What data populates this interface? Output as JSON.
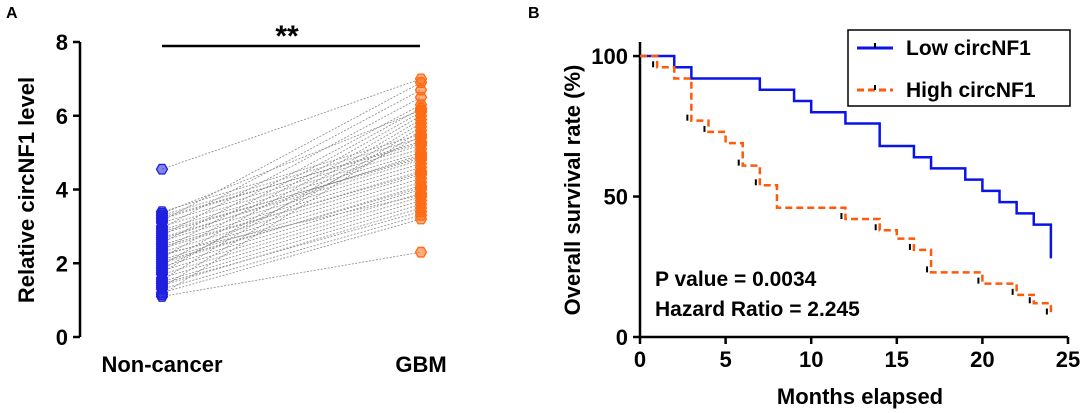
{
  "panels": {
    "a_label": "A",
    "b_label": "B"
  },
  "colors": {
    "noncancer": "#1f1fe0",
    "gbm": "#ff6a13",
    "low": "#0a14e8",
    "high": "#ff5a0a",
    "pair_line": "#8a8a8a",
    "axis": "#000000"
  },
  "chart_data": [
    {
      "type": "scatter",
      "subtype": "paired-dot",
      "ylabel": "Relative circNF1 level",
      "categories": [
        "Non-cancer",
        "GBM"
      ],
      "ylim": [
        0,
        8
      ],
      "yticks": [
        0,
        2,
        4,
        6,
        8
      ],
      "significance": "**",
      "pairs": [
        [
          1.1,
          2.3
        ],
        [
          1.2,
          3.2
        ],
        [
          1.3,
          3.3
        ],
        [
          1.4,
          3.5
        ],
        [
          1.5,
          3.6
        ],
        [
          1.6,
          3.7
        ],
        [
          1.7,
          3.8
        ],
        [
          1.8,
          3.9
        ],
        [
          1.9,
          4.0
        ],
        [
          2.0,
          4.1
        ],
        [
          2.1,
          4.2
        ],
        [
          2.2,
          4.3
        ],
        [
          2.3,
          4.4
        ],
        [
          2.4,
          4.5
        ],
        [
          2.5,
          4.6
        ],
        [
          2.6,
          4.7
        ],
        [
          2.7,
          4.8
        ],
        [
          2.8,
          4.9
        ],
        [
          2.9,
          5.0
        ],
        [
          3.0,
          5.1
        ],
        [
          3.1,
          5.2
        ],
        [
          3.2,
          5.3
        ],
        [
          3.3,
          5.4
        ],
        [
          3.4,
          5.5
        ],
        [
          1.15,
          5.6
        ],
        [
          1.35,
          5.7
        ],
        [
          1.55,
          5.8
        ],
        [
          1.75,
          5.9
        ],
        [
          1.95,
          6.0
        ],
        [
          2.15,
          6.1
        ],
        [
          2.35,
          6.2
        ],
        [
          2.55,
          6.3
        ],
        [
          2.75,
          6.5
        ],
        [
          2.95,
          6.7
        ],
        [
          3.15,
          6.9
        ],
        [
          4.55,
          7.0
        ],
        [
          2.05,
          4.05
        ],
        [
          2.45,
          4.45
        ],
        [
          2.85,
          4.85
        ],
        [
          3.25,
          5.25
        ],
        [
          1.45,
          3.4
        ],
        [
          1.85,
          5.45
        ],
        [
          2.25,
          3.85
        ],
        [
          2.65,
          4.95
        ],
        [
          3.35,
          6.15
        ]
      ]
    },
    {
      "type": "line",
      "subtype": "kaplan-meier",
      "xlabel": "Months elapsed",
      "ylabel": "Overall survival rate (%)",
      "xlim": [
        0,
        25
      ],
      "ylim": [
        0,
        105
      ],
      "xticks": [
        0,
        5,
        10,
        15,
        20,
        25
      ],
      "yticks": [
        0,
        50,
        100
      ],
      "legend_position": "top-right",
      "annotations": [
        "P value = 0.0034",
        "Hazard Ratio = 2.245"
      ],
      "series": [
        {
          "name": "Low circNF1",
          "style": "solid",
          "steps": [
            [
              0,
              100
            ],
            [
              2,
              96
            ],
            [
              3,
              92
            ],
            [
              7,
              88
            ],
            [
              9,
              84
            ],
            [
              10,
              80
            ],
            [
              12,
              76
            ],
            [
              14,
              68
            ],
            [
              16,
              64
            ],
            [
              17,
              60
            ],
            [
              19,
              56
            ],
            [
              20,
              52
            ],
            [
              21,
              48
            ],
            [
              22,
              44
            ],
            [
              23,
              40
            ],
            [
              24,
              28
            ]
          ],
          "end": 24,
          "censored": []
        },
        {
          "name": "High circNF1",
          "style": "dashed",
          "steps": [
            [
              0,
              100
            ],
            [
              1,
              96
            ],
            [
              2,
              92
            ],
            [
              3,
              77
            ],
            [
              4,
              73
            ],
            [
              5,
              69
            ],
            [
              6,
              61
            ],
            [
              7,
              54
            ],
            [
              8,
              46
            ],
            [
              12,
              42
            ],
            [
              14,
              38
            ],
            [
              15,
              35
            ],
            [
              16,
              31
            ],
            [
              17,
              23
            ],
            [
              20,
              19
            ],
            [
              22,
              15
            ],
            [
              23,
              12
            ],
            [
              24,
              8
            ]
          ],
          "end": 24,
          "censored": [
            [
              1,
              96
            ],
            [
              3,
              77
            ],
            [
              4,
              73
            ],
            [
              6,
              61
            ],
            [
              7,
              54
            ],
            [
              12,
              42
            ],
            [
              14,
              38
            ],
            [
              16,
              31
            ],
            [
              17,
              23
            ],
            [
              20,
              19
            ],
            [
              22,
              15
            ],
            [
              23,
              12
            ],
            [
              24,
              8
            ]
          ]
        }
      ]
    }
  ]
}
